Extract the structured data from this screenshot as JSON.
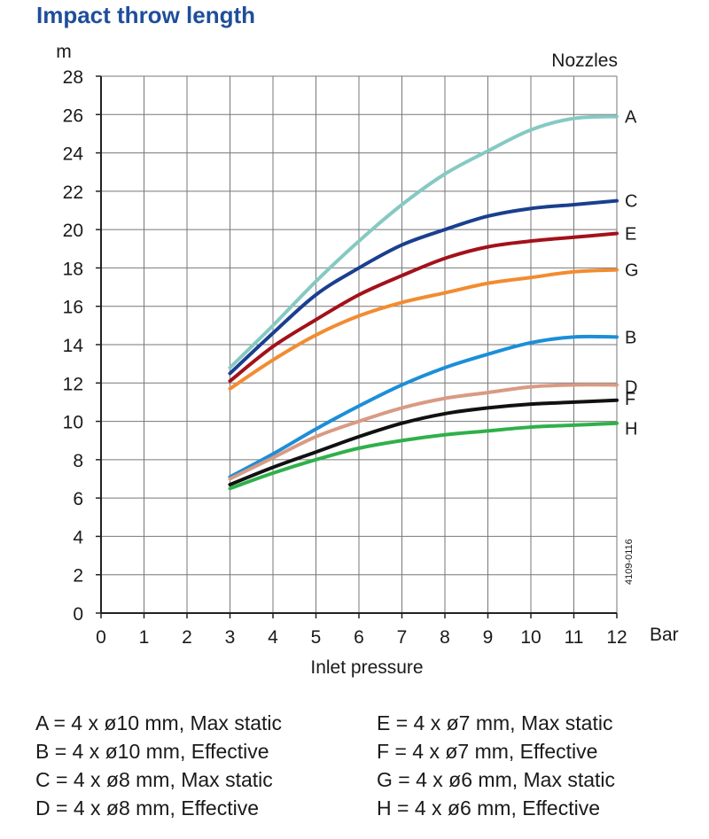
{
  "chart_data": {
    "type": "line",
    "title": "Impact throw length",
    "ylabel": "m",
    "xlabel": "Inlet pressure",
    "xunit": "Bar",
    "legend_title": "Nozzles",
    "figure_code": "4109-0116",
    "xlim": [
      0,
      12
    ],
    "ylim": [
      0,
      28
    ],
    "xticks": [
      0,
      1,
      2,
      3,
      4,
      5,
      6,
      7,
      8,
      9,
      10,
      11,
      12
    ],
    "yticks": [
      0,
      2,
      4,
      6,
      8,
      10,
      12,
      14,
      16,
      18,
      20,
      22,
      24,
      26,
      28
    ],
    "grid": true,
    "x": [
      3,
      4,
      5,
      6,
      7,
      8,
      9,
      10,
      11,
      12
    ],
    "series": [
      {
        "name": "A",
        "color": "#86c9c3",
        "values": [
          12.8,
          15.0,
          17.3,
          19.4,
          21.3,
          22.9,
          24.1,
          25.2,
          25.8,
          25.9
        ]
      },
      {
        "name": "C",
        "color": "#1a3f8f",
        "values": [
          12.5,
          14.6,
          16.6,
          18.0,
          19.2,
          20.0,
          20.7,
          21.1,
          21.3,
          21.5
        ]
      },
      {
        "name": "E",
        "color": "#a3111b",
        "values": [
          12.1,
          13.9,
          15.3,
          16.6,
          17.6,
          18.5,
          19.1,
          19.4,
          19.6,
          19.8
        ]
      },
      {
        "name": "G",
        "color": "#f28c30",
        "values": [
          11.7,
          13.2,
          14.5,
          15.5,
          16.2,
          16.7,
          17.2,
          17.5,
          17.8,
          17.9
        ]
      },
      {
        "name": "B",
        "color": "#1d8ed8",
        "values": [
          7.1,
          8.3,
          9.6,
          10.8,
          11.9,
          12.8,
          13.5,
          14.1,
          14.4,
          14.4
        ]
      },
      {
        "name": "D",
        "color": "#d99a84",
        "values": [
          7.0,
          8.1,
          9.2,
          10.0,
          10.7,
          11.2,
          11.5,
          11.8,
          11.9,
          11.9
        ]
      },
      {
        "name": "F",
        "color": "#111111",
        "values": [
          6.7,
          7.6,
          8.4,
          9.2,
          9.9,
          10.4,
          10.7,
          10.9,
          11.0,
          11.1
        ]
      },
      {
        "name": "H",
        "color": "#2fb04a",
        "values": [
          6.5,
          7.3,
          8.0,
          8.6,
          9.0,
          9.3,
          9.5,
          9.7,
          9.8,
          9.9
        ]
      }
    ]
  },
  "legend": [
    "A = 4 x ø10 mm, Max static",
    "E = 4 x ø7 mm, Max static",
    "B = 4 x ø10 mm, Effective",
    "F = 4 x ø7 mm, Effective",
    "C = 4 x ø8 mm, Max static",
    "G = 4 x ø6 mm, Max static",
    "D = 4 x ø8 mm, Effective",
    "H = 4 x ø6 mm, Effective"
  ]
}
